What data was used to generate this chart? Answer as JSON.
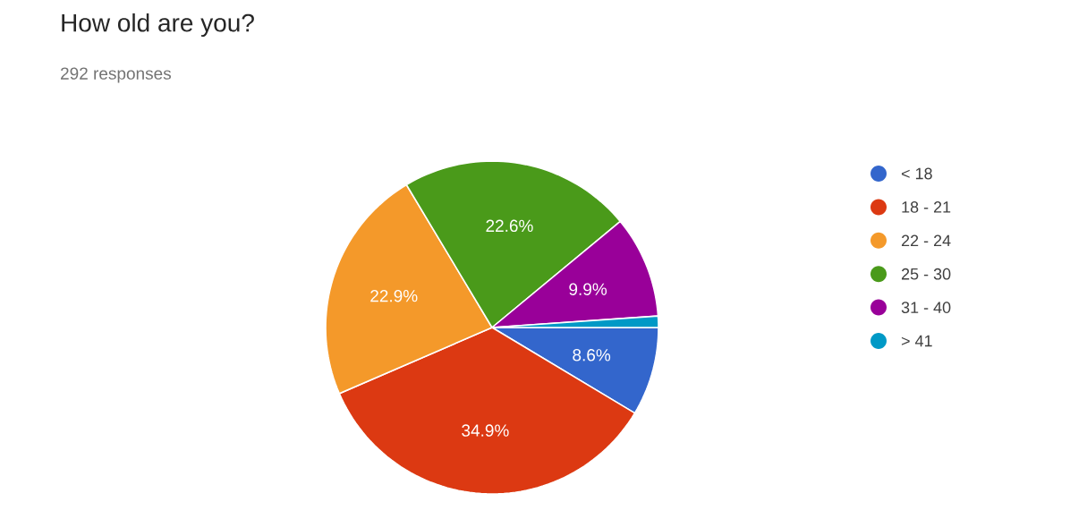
{
  "chart_data": {
    "type": "pie",
    "title": "How old are you?",
    "subtitle": "292 responses",
    "categories": [
      "< 18",
      "18 - 21",
      "22 - 24",
      "25 - 30",
      "31 - 40",
      "> 41"
    ],
    "values": [
      8.6,
      34.9,
      22.9,
      22.6,
      9.9,
      1.1
    ],
    "value_labels": [
      "8.6%",
      "34.9%",
      "22.9%",
      "22.6%",
      "9.9%",
      null
    ],
    "colors": [
      "#3366cc",
      "#dc3912",
      "#f4992a",
      "#4a9a1a",
      "#990099",
      "#0099c6"
    ],
    "legend": "right"
  }
}
